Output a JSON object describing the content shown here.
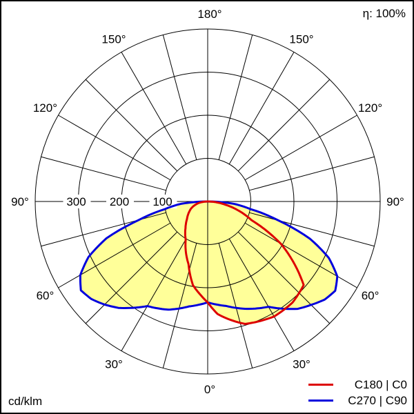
{
  "chart_data": {
    "type": "polar",
    "unit_label": "cd/klm",
    "efficiency_label": "η: 100%",
    "radial_max": 400,
    "radial_ticks": [
      100,
      200,
      300
    ],
    "angle_labels": {
      "left": [
        "180°",
        "150°",
        "120°",
        "90°",
        "60°",
        "30°",
        "0°"
      ],
      "right": [
        "150°",
        "120°",
        "90°",
        "60°",
        "30°"
      ]
    },
    "angle_tick_values": [
      0,
      30,
      60,
      90,
      120,
      150,
      180
    ],
    "fill_color": "#ffff99",
    "series": [
      {
        "name": "C270 | C90",
        "color": "#0000dd",
        "left_plane": "C270",
        "right_plane": "C90",
        "gamma": [
          0,
          10,
          20,
          30,
          40,
          45,
          50,
          55,
          60,
          65,
          70,
          75,
          80,
          85,
          90
        ],
        "left_values": [
          234,
          247,
          267,
          280,
          322,
          338,
          352,
          359,
          341,
          305,
          250,
          165,
          100,
          62,
          0
        ],
        "right_values": [
          234,
          246,
          265,
          282,
          325,
          339,
          354,
          361,
          347,
          310,
          252,
          170,
          100,
          60,
          0
        ]
      },
      {
        "name": "C180 | C0",
        "color": "#dd0000",
        "left_plane": "C180",
        "right_plane": "C0",
        "gamma": [
          0,
          5,
          10,
          17,
          30,
          40,
          49,
          60,
          67,
          80,
          90
        ],
        "left_values": [
          234,
          215,
          197,
          152,
          102,
          80,
          64,
          50,
          42,
          22,
          0
        ],
        "right_values": [
          234,
          262,
          277,
          297,
          308,
          306,
          295,
          196,
          110,
          40,
          0
        ]
      }
    ]
  }
}
